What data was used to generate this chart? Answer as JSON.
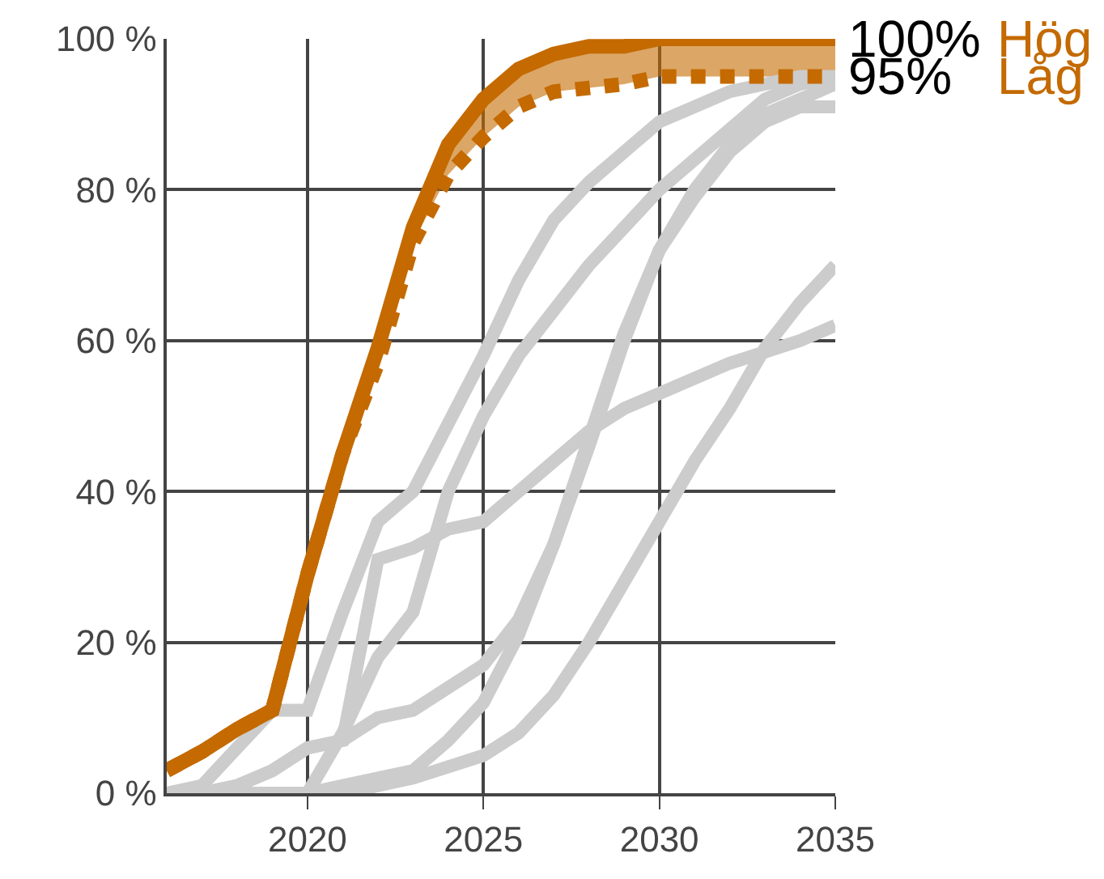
{
  "chart_data": {
    "type": "line",
    "x": [
      2016,
      2017,
      2018,
      2019,
      2020,
      2021,
      2022,
      2023,
      2024,
      2025,
      2026,
      2027,
      2028,
      2029,
      2030,
      2031,
      2032,
      2033,
      2034,
      2035
    ],
    "xlim": [
      2016,
      2035
    ],
    "xticks": [
      2020,
      2025,
      2030,
      2035
    ],
    "ylim": [
      0,
      100
    ],
    "yticks": [
      {
        "value": 0,
        "label": "0 %"
      },
      {
        "value": 20,
        "label": "20 %"
      },
      {
        "value": 40,
        "label": "40 %"
      },
      {
        "value": 60,
        "label": "60 %"
      },
      {
        "value": 80,
        "label": "80 %"
      },
      {
        "value": 100,
        "label": "100 %"
      }
    ],
    "grid": true,
    "legend": false,
    "marker": "none",
    "series": [
      {
        "color": "#cccccc",
        "values": [
          0,
          1,
          6,
          11,
          11,
          24,
          36,
          40,
          49,
          58,
          68,
          76,
          81,
          85,
          89,
          91,
          93,
          94,
          95,
          95
        ]
      },
      {
        "color": "#cccccc",
        "values": [
          0,
          0,
          1,
          3,
          6,
          7,
          31,
          32.5,
          35,
          36,
          40,
          44,
          48,
          51,
          53,
          55,
          57,
          58.5,
          60,
          62
        ]
      },
      {
        "color": "#cccccc",
        "values": [
          0,
          0,
          0,
          0,
          0,
          8,
          18,
          24,
          40,
          50,
          58,
          64,
          70,
          75,
          80,
          84,
          88,
          92,
          94,
          95
        ]
      },
      {
        "color": "#cccccc",
        "values": [
          0,
          0,
          1,
          3,
          6,
          7,
          10,
          11,
          14,
          17,
          23,
          33,
          46,
          60,
          72,
          80,
          86,
          90,
          92,
          94
        ]
      },
      {
        "color": "#cccccc",
        "values": [
          0,
          0,
          0,
          0,
          0,
          1,
          2,
          3,
          7,
          12,
          21,
          33,
          47,
          61,
          72,
          79,
          85,
          89,
          91,
          91
        ]
      },
      {
        "color": "#cccccc",
        "values": [
          0,
          0,
          0,
          0,
          0,
          0,
          1,
          2,
          3.5,
          5,
          8,
          13,
          20,
          28,
          36,
          44,
          51,
          59,
          65,
          70
        ]
      },
      {
        "name": "Låg",
        "color": "#c46a00",
        "line_style": "dotted",
        "lower": [
          3,
          5.5,
          8.5,
          11,
          29,
          45,
          57,
          73,
          82,
          87,
          91,
          93,
          93.5,
          94,
          95,
          95,
          95,
          95,
          95,
          95
        ],
        "upper": [
          3,
          5.5,
          8.5,
          11,
          29,
          45,
          59,
          75,
          86,
          92,
          96,
          98,
          99,
          99,
          100,
          100,
          100,
          100,
          100,
          100
        ],
        "values": [
          3,
          5.5,
          8.5,
          11,
          29,
          45,
          57,
          73,
          82,
          87,
          91,
          93,
          93.5,
          94,
          95,
          95,
          95,
          95,
          95,
          95
        ]
      },
      {
        "name": "Hög",
        "color": "#c46a00",
        "line_style": "solid",
        "values": [
          3,
          5.5,
          8.5,
          11,
          29,
          45,
          59,
          75,
          86,
          92,
          96,
          98,
          99,
          99,
          100,
          100,
          100,
          100,
          100,
          100
        ]
      }
    ],
    "annotations": [
      {
        "text": "100%",
        "x": 2035,
        "y": 100
      },
      {
        "text": "95%",
        "x": 2035,
        "y": 95
      }
    ]
  }
}
